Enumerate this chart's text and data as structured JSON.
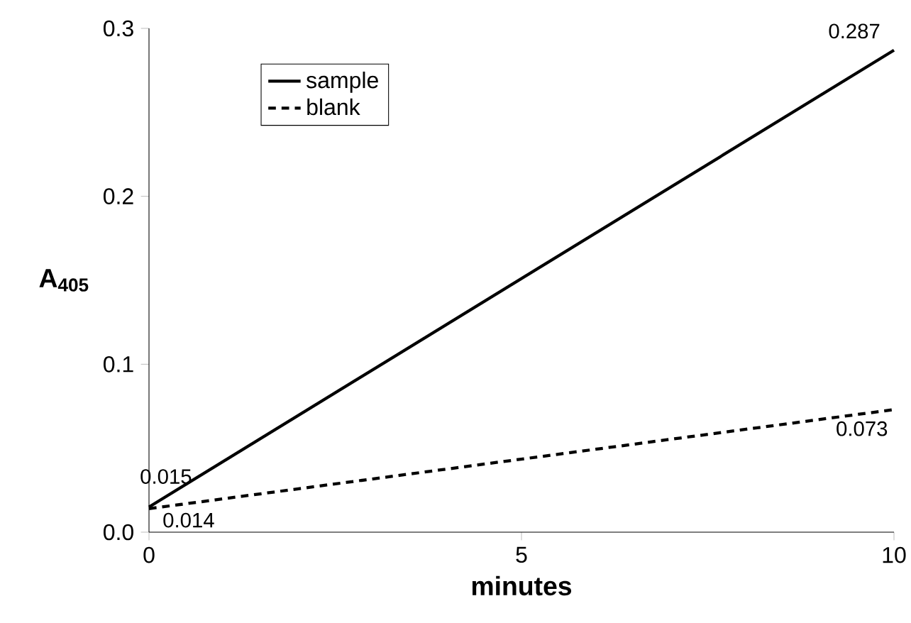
{
  "chart_data": {
    "type": "line",
    "xlabel": "minutes",
    "ylabel": "A$_{405}$",
    "x": [
      0,
      10
    ],
    "series": [
      {
        "name": "sample",
        "color": "#000000",
        "line_style": "solid",
        "values": [
          0.015,
          0.287
        ],
        "value_labels": [
          "0.015",
          "0.287"
        ]
      },
      {
        "name": "blank",
        "color": "#000000",
        "line_style": "dashed",
        "values": [
          0.014,
          0.073
        ],
        "value_labels": [
          "0.014",
          "0.073"
        ]
      }
    ],
    "xlim": [
      0,
      10
    ],
    "xticks": [
      0,
      5,
      10
    ],
    "ylim": [
      0,
      0.3
    ],
    "yticks": [
      {
        "value": 0,
        "label": "0.0"
      },
      0.1,
      0.2,
      0.3
    ],
    "legend": "top left",
    "grid": false,
    "marker": "none"
  }
}
